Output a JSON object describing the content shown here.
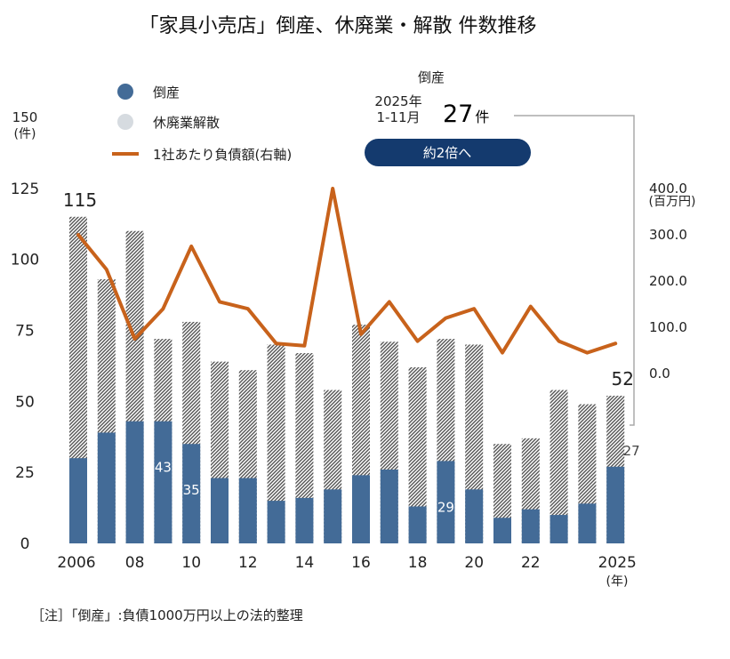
{
  "title": "「家具小売店」倒産、休廃業・解散 件数推移",
  "note": "［注］「倒産」:負債1000万円以上の法的整理",
  "callout": {
    "header": "倒産",
    "period": "2025年\n1-11月",
    "count_number": "27",
    "count_unit": "件",
    "badge": "約2倍へ"
  },
  "left_unit": "(件)",
  "right_unit": "(百万円)",
  "x_unit": "(年)",
  "colors": {
    "bankruptcy": "#436b97",
    "closure_dark": "#555555",
    "closure_light": "#ffffff",
    "debt_line": "#c8621b",
    "badge": "#143a6e",
    "callout_line": "#aaaaaa"
  },
  "chart_data": {
    "type": "bar",
    "title": "「家具小売店」倒産、休廃業・解散 件数推移",
    "categories": [
      "2006",
      "2007",
      "2008",
      "2009",
      "2010",
      "2011",
      "2012",
      "2013",
      "2014",
      "2015",
      "2016",
      "2017",
      "2018",
      "2019",
      "2020",
      "2021",
      "2022",
      "2023",
      "2024",
      "2025"
    ],
    "x_tick_labels": [
      {
        "index": 0,
        "label": "2006"
      },
      {
        "index": 2,
        "label": "08"
      },
      {
        "index": 4,
        "label": "10"
      },
      {
        "index": 6,
        "label": "12"
      },
      {
        "index": 8,
        "label": "14"
      },
      {
        "index": 10,
        "label": "16"
      },
      {
        "index": 12,
        "label": "18"
      },
      {
        "index": 14,
        "label": "20"
      },
      {
        "index": 16,
        "label": "22"
      },
      {
        "index": 19,
        "label": "2025"
      }
    ],
    "series": [
      {
        "name": "倒産",
        "axis": "left",
        "style": "solid-bar",
        "values": [
          30,
          39,
          43,
          43,
          35,
          23,
          23,
          15,
          16,
          19,
          24,
          26,
          13,
          29,
          19,
          9,
          12,
          10,
          14,
          27
        ],
        "labels": {
          "3": "43",
          "4": "35",
          "13": "29",
          "18": "14",
          "19": "27"
        }
      },
      {
        "name": "休廃業解散",
        "axis": "left",
        "style": "hatched-bar",
        "values": [
          115,
          93,
          110,
          72,
          78,
          64,
          61,
          70,
          67,
          54,
          77,
          71,
          62,
          72,
          70,
          35,
          37,
          54,
          49,
          52
        ],
        "labels": {
          "0": "115",
          "19": "52"
        }
      },
      {
        "name": "1社あたり負債額(右軸)",
        "axis": "right",
        "style": "line",
        "values": [
          300,
          225,
          75,
          140,
          275,
          155,
          140,
          65,
          60,
          400,
          85,
          155,
          70,
          120,
          140,
          45,
          145,
          70,
          45,
          65
        ]
      }
    ],
    "left_axis": {
      "min": 0,
      "max": 150,
      "ticks": [
        "0",
        "25",
        "50",
        "75",
        "100",
        "125",
        "150"
      ]
    },
    "right_axis": {
      "min": 0,
      "max": 400,
      "ticks": [
        "0.0",
        "100.0",
        "200.0",
        "300.0",
        "400.0"
      ]
    },
    "legend": "top-left",
    "grid": false
  }
}
